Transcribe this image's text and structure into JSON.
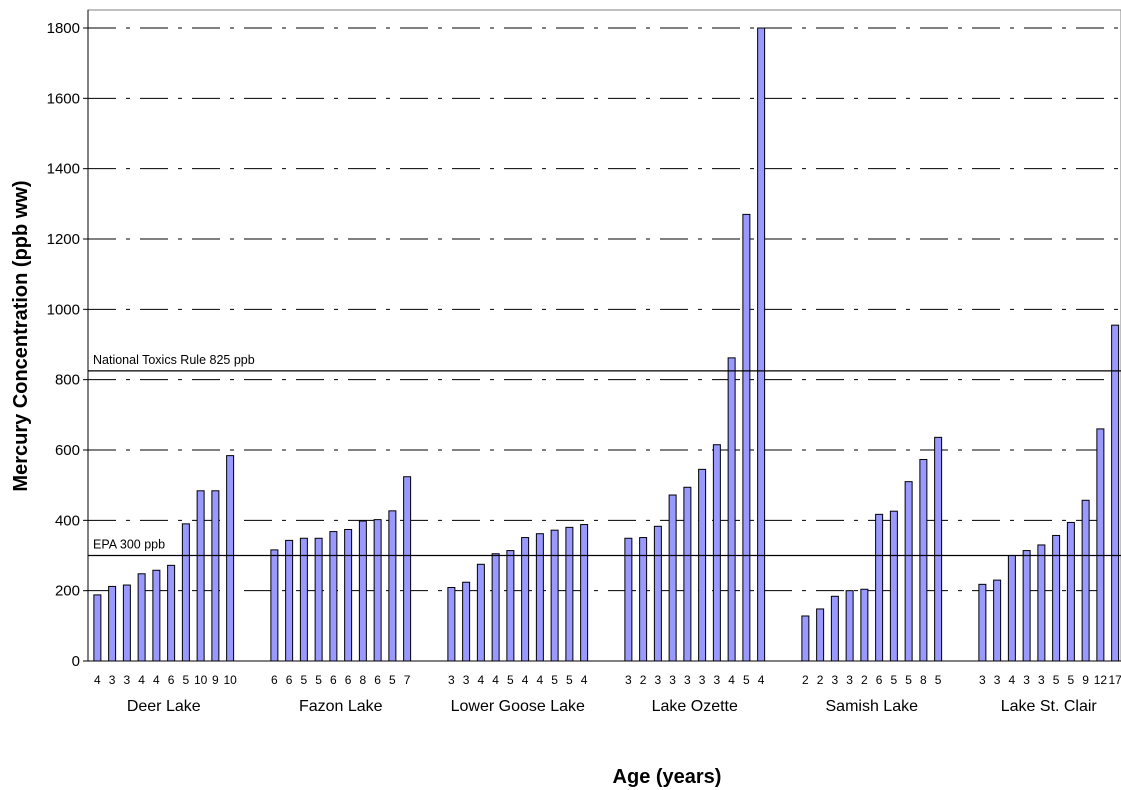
{
  "chart_data": {
    "type": "bar",
    "ylabel": "Mercury Concentration (ppb ww)",
    "xlabel": "Age (years)",
    "ylim": [
      0,
      1800
    ],
    "yticks": [
      0,
      200,
      400,
      600,
      800,
      1000,
      1200,
      1400,
      1600,
      1800
    ],
    "grid": "horizontal dash-dot",
    "bar_color": "#9999ff",
    "reference_lines": [
      {
        "label": "National Toxics Rule 825 ppb",
        "value": 825
      },
      {
        "label": "EPA 300 ppb",
        "value": 300
      }
    ],
    "groups": [
      {
        "name": "Deer Lake",
        "ages": [
          "4",
          "3",
          "3",
          "4",
          "4",
          "6",
          "5",
          "10",
          "9",
          "10"
        ],
        "values": [
          188,
          212,
          216,
          248,
          258,
          272,
          390,
          484,
          484,
          584
        ]
      },
      {
        "name": "Fazon Lake",
        "ages": [
          "6",
          "6",
          "5",
          "5",
          "6",
          "6",
          "8",
          "6",
          "5",
          "7"
        ],
        "values": [
          316,
          343,
          349,
          349,
          368,
          374,
          398,
          402,
          427,
          524
        ]
      },
      {
        "name": "Lower Goose Lake",
        "ages": [
          "3",
          "3",
          "4",
          "4",
          "5",
          "4",
          "4",
          "5",
          "5",
          "4"
        ],
        "values": [
          209,
          224,
          275,
          305,
          314,
          351,
          362,
          372,
          380,
          388
        ]
      },
      {
        "name": "Lake Ozette",
        "ages": [
          "3",
          "2",
          "3",
          "3",
          "3",
          "3",
          "3",
          "4",
          "5",
          "4"
        ],
        "values": [
          349,
          351,
          383,
          472,
          494,
          545,
          615,
          862,
          1270,
          1800
        ]
      },
      {
        "name": "Samish Lake",
        "ages": [
          "2",
          "2",
          "3",
          "3",
          "2",
          "6",
          "5",
          "5",
          "8",
          "5"
        ],
        "values": [
          128,
          148,
          184,
          200,
          204,
          417,
          426,
          510,
          573,
          636
        ]
      },
      {
        "name": "Lake St. Clair",
        "ages": [
          "3",
          "3",
          "4",
          "3",
          "3",
          "5",
          "5",
          "9",
          "12",
          "17"
        ],
        "values": [
          218,
          230,
          300,
          314,
          330,
          357,
          394,
          457,
          660,
          955
        ]
      }
    ]
  }
}
